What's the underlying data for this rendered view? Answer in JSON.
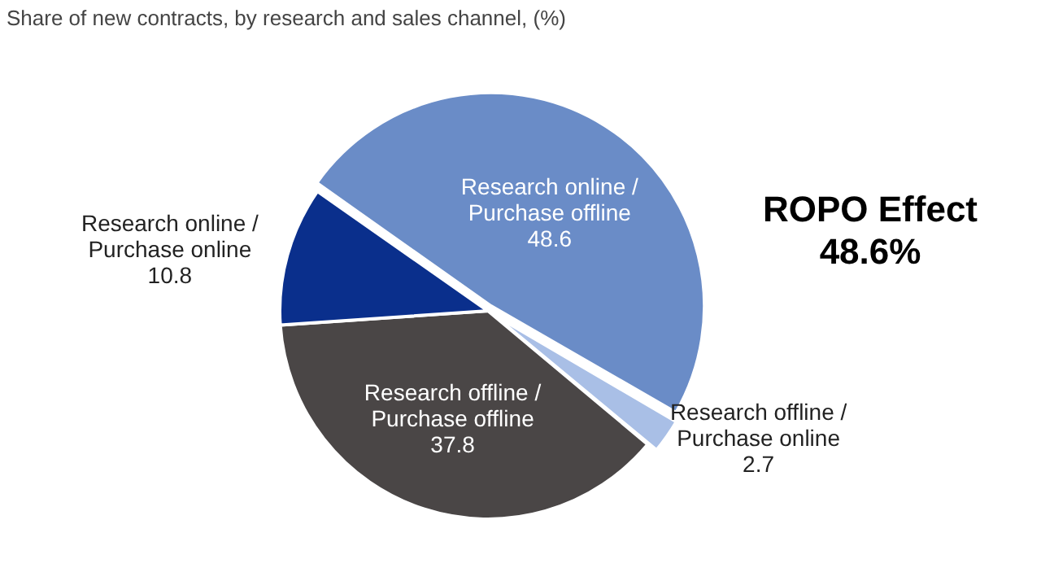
{
  "chart_data": {
    "type": "pie",
    "title": "Share of new contracts, by research and sales channel, (%)",
    "categories": [
      "Research online / Purchase offline",
      "Research offline / Purchase online",
      "Research offline / Purchase offline",
      "Research online / Purchase online"
    ],
    "values": [
      48.6,
      2.7,
      37.8,
      10.8
    ],
    "colors": [
      "#6a8cc7",
      "#a9bfe6",
      "#4a4646",
      "#0a2f8c"
    ],
    "data_labels": true,
    "legend": false,
    "annotations": [
      "ROPO Effect\n48.6%"
    ]
  }
}
